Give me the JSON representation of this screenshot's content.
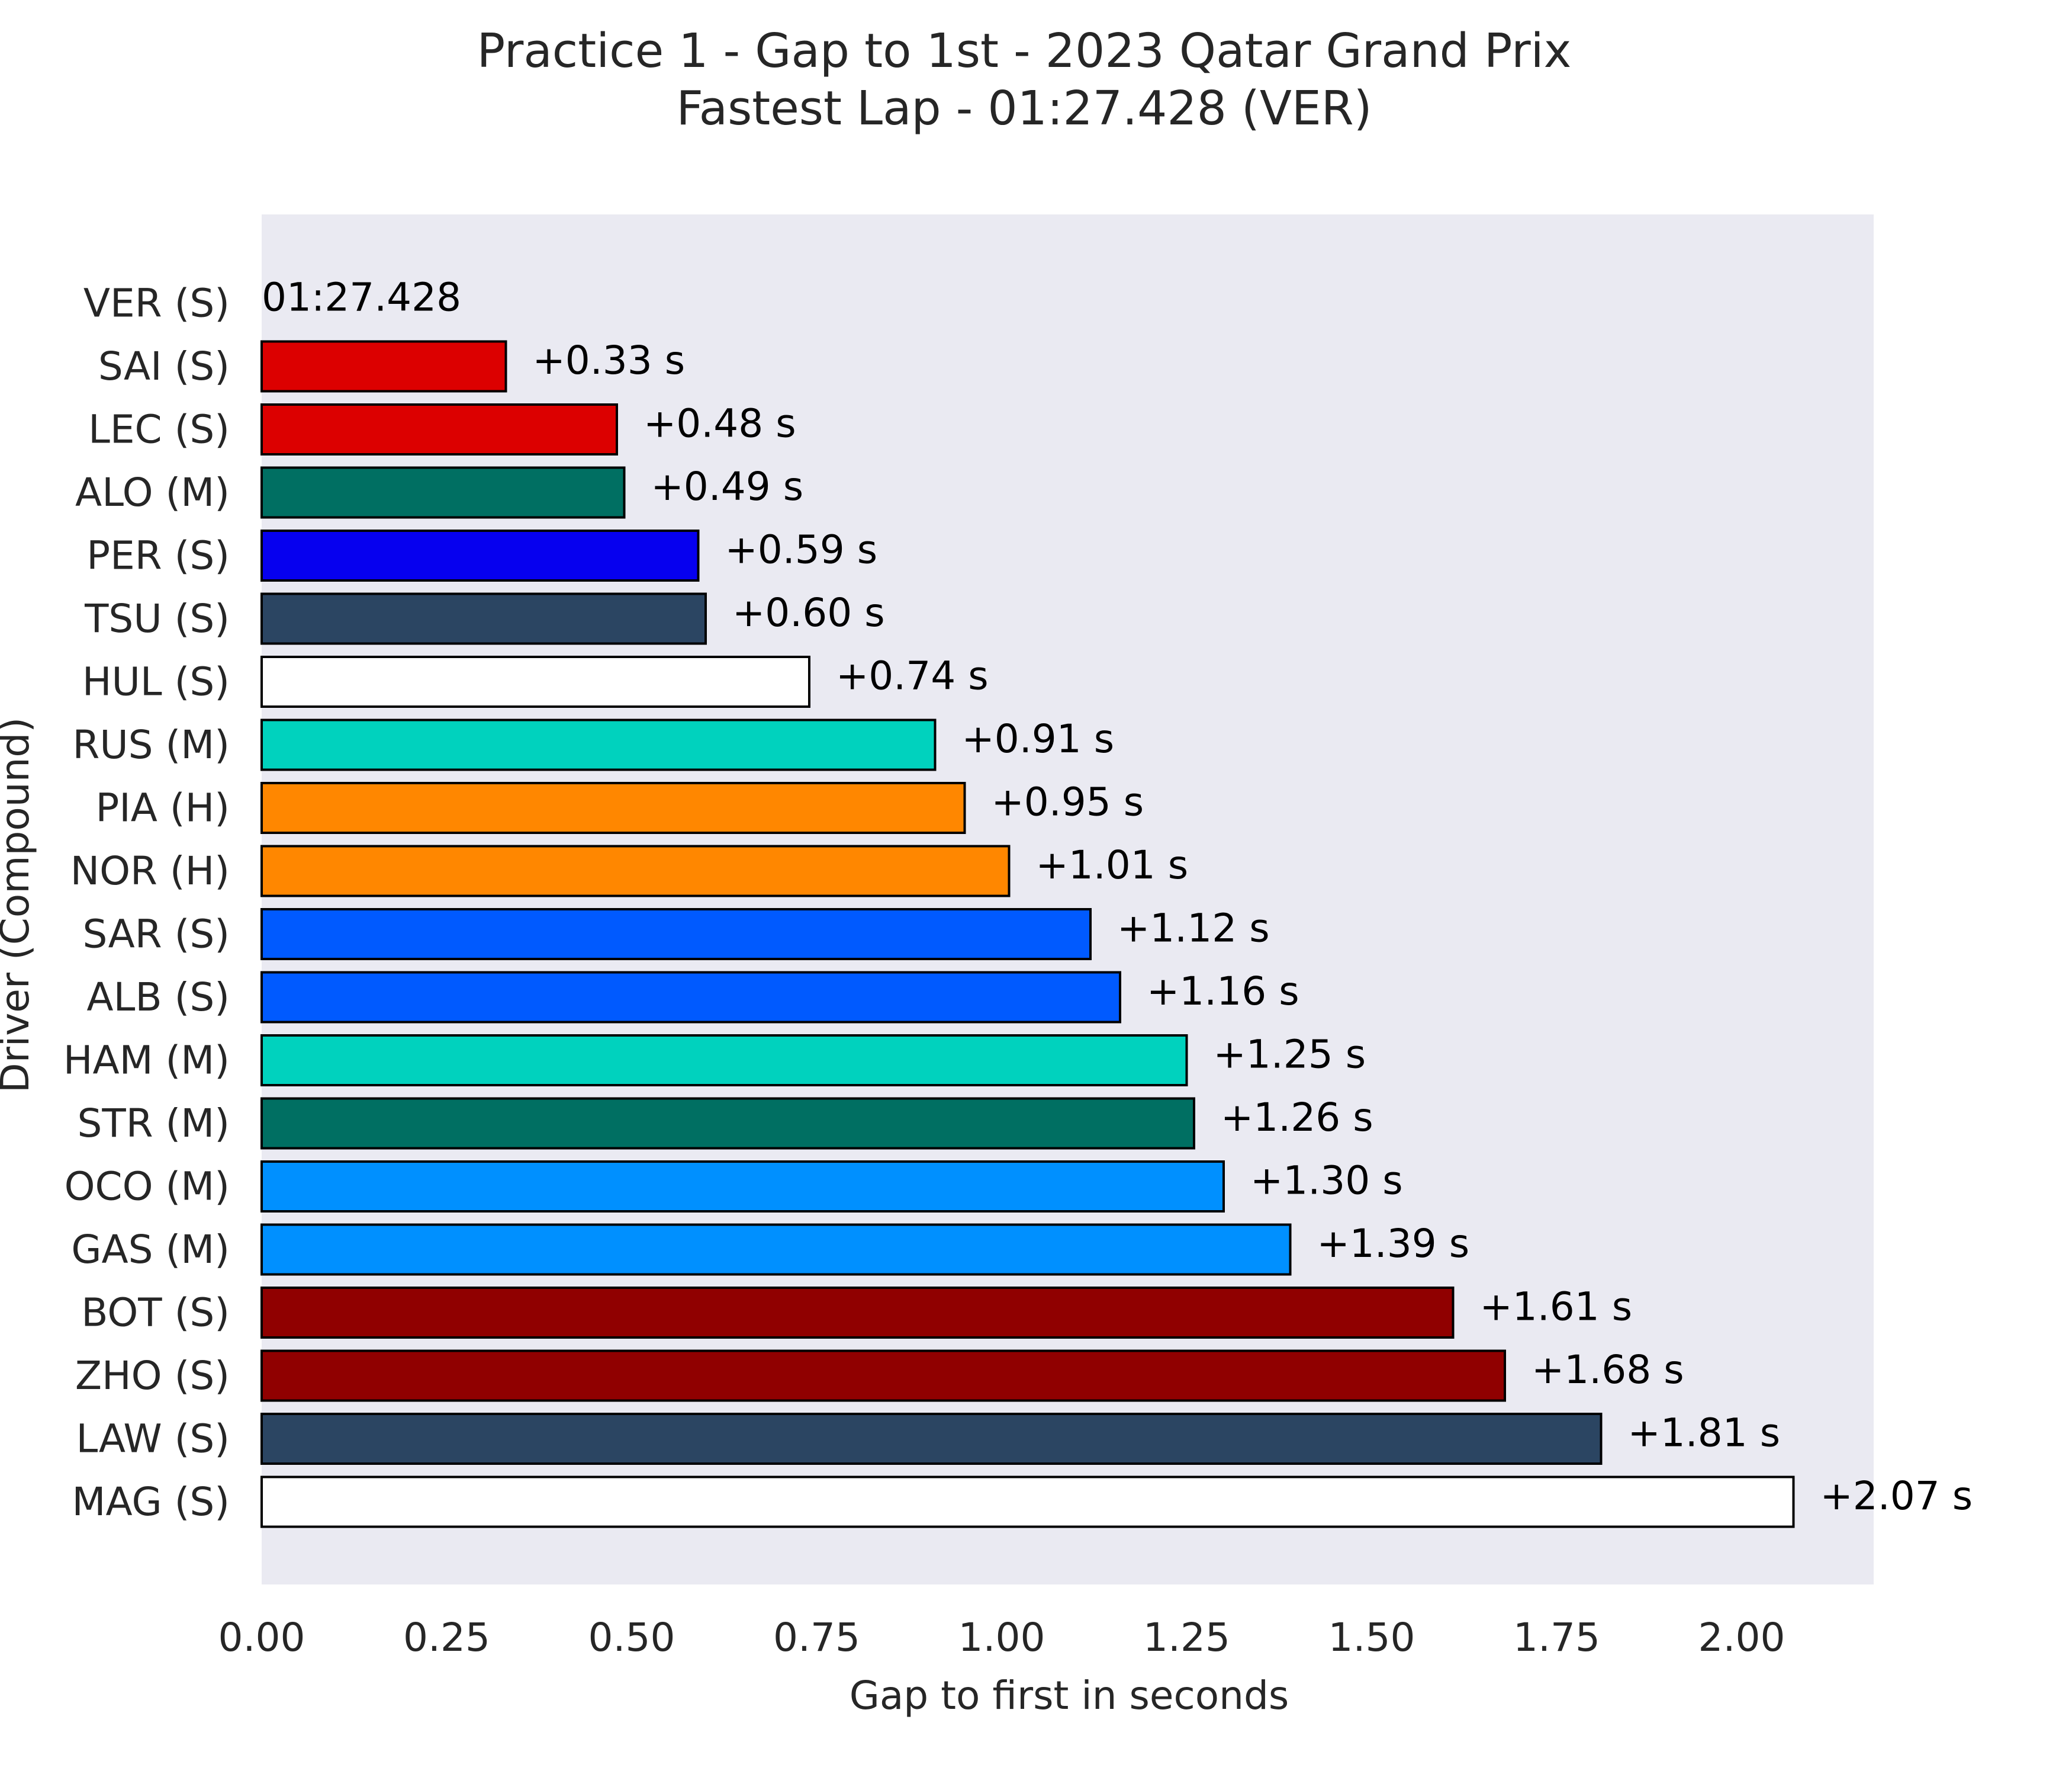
{
  "chart_data": {
    "type": "bar",
    "orientation": "horizontal",
    "title": "Practice 1 - Gap to 1st - 2023 Qatar Grand Prix",
    "subtitle": "Fastest Lap - 01:27.428 (VER)",
    "xlabel": "Gap to first in seconds",
    "ylabel": "Driver (Compound)",
    "xlim": [
      0,
      2.17
    ],
    "x_ticks": [
      "0.00",
      "0.25",
      "0.50",
      "0.75",
      "1.00",
      "1.25",
      "1.50",
      "1.75",
      "2.00"
    ],
    "grid": false,
    "background_color": "#eaeaf2",
    "bar_edge_color": "#000000",
    "categories": [
      "VER (S)",
      "SAI (S)",
      "LEC (S)",
      "ALO (M)",
      "PER (S)",
      "TSU (S)",
      "HUL (S)",
      "RUS (M)",
      "PIA (H)",
      "NOR (H)",
      "SAR (S)",
      "ALB (S)",
      "HAM (M)",
      "STR (M)",
      "OCO (M)",
      "GAS (M)",
      "BOT (S)",
      "ZHO (S)",
      "LAW (S)",
      "MAG (S)"
    ],
    "values": [
      0.0,
      0.33,
      0.48,
      0.49,
      0.59,
      0.6,
      0.74,
      0.91,
      0.95,
      1.01,
      1.12,
      1.16,
      1.25,
      1.26,
      1.3,
      1.39,
      1.61,
      1.68,
      1.81,
      2.07
    ],
    "data_labels": [
      "01:27.428",
      "+0.33 s",
      "+0.48 s",
      "+0.49 s",
      "+0.59 s",
      "+0.60 s",
      "+0.74 s",
      "+0.91 s",
      "+0.95 s",
      "+1.01 s",
      "+1.12 s",
      "+1.16 s",
      "+1.25 s",
      "+1.26 s",
      "+1.30 s",
      "+1.39 s",
      "+1.61 s",
      "+1.68 s",
      "+1.81 s",
      "+2.07 s"
    ],
    "colors": [
      "#3671c6",
      "#dc0000",
      "#dc0000",
      "#006f62",
      "#0600ef",
      "#2b4562",
      "#ffffff",
      "#00d2be",
      "#ff8700",
      "#ff8700",
      "#005aff",
      "#005aff",
      "#00d2be",
      "#006f62",
      "#0090ff",
      "#0090ff",
      "#900000",
      "#900000",
      "#2b4562",
      "#ffffff"
    ]
  }
}
